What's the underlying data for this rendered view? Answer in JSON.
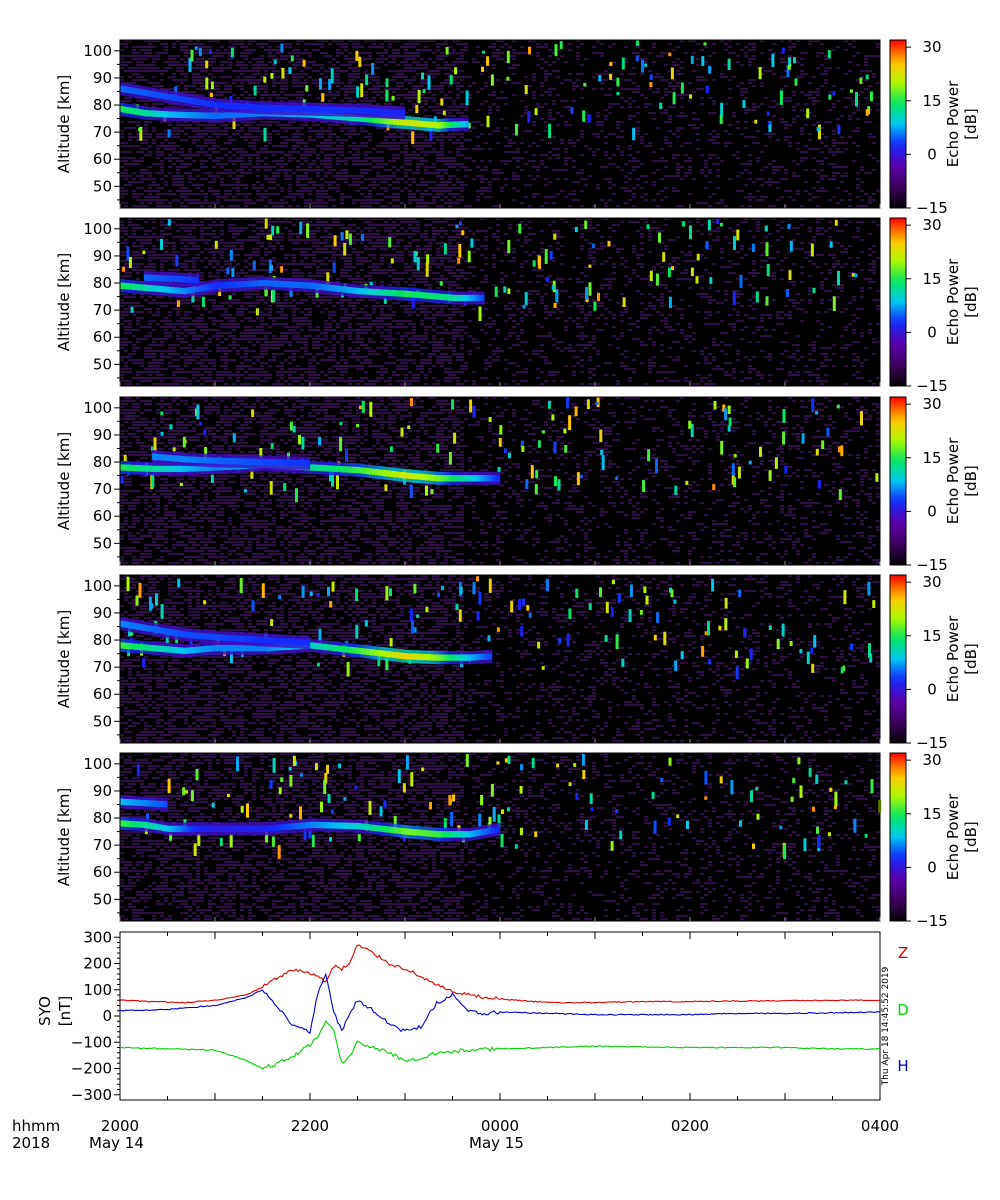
{
  "chart_data": [
    {
      "type": "heatmap",
      "panel": 1,
      "ylabel": "Altitude [km]",
      "ylim": [
        42,
        104
      ],
      "yticks": [
        50,
        60,
        70,
        80,
        90,
        100
      ],
      "xlim": [
        "2018-05-14 20:00",
        "2018-05-15 04:00"
      ],
      "colorbar": {
        "label": "Echo Power [dB]",
        "range": [
          -15,
          32
        ],
        "ticks": [
          -15,
          0,
          15,
          30
        ]
      },
      "echo_layers": [
        {
          "time": [
            "20:00",
            "20:15",
            "20:30",
            "21:00",
            "21:30",
            "22:00",
            "22:30",
            "23:00",
            "23:20",
            "23:40"
          ],
          "altitude_km": [
            78.5,
            77,
            76.5,
            76,
            77,
            76.5,
            75,
            73.5,
            72.5,
            73
          ],
          "peak_dB": [
            15,
            12,
            8,
            5,
            6,
            8,
            12,
            22,
            20,
            6
          ]
        },
        {
          "time": [
            "20:00",
            "20:30",
            "21:00",
            "21:30",
            "22:00",
            "22:30",
            "23:00"
          ],
          "altitude_km": [
            86,
            83,
            80,
            79,
            78.5,
            78,
            77
          ],
          "peak_dB": [
            5,
            4,
            3,
            3,
            3,
            3,
            2
          ]
        }
      ]
    },
    {
      "type": "heatmap",
      "panel": 2,
      "ylabel": "Altitude [km]",
      "ylim": [
        42,
        104
      ],
      "yticks": [
        50,
        60,
        70,
        80,
        90,
        100
      ],
      "xlim": [
        "2018-05-14 20:00",
        "2018-05-15 04:00"
      ],
      "colorbar": {
        "label": "Echo Power [dB]",
        "range": [
          -15,
          32
        ],
        "ticks": [
          -15,
          0,
          15,
          30
        ]
      },
      "echo_layers": [
        {
          "time": [
            "20:00",
            "20:20",
            "20:40",
            "21:00",
            "21:30",
            "22:00",
            "22:30",
            "23:00",
            "23:30",
            "23:50"
          ],
          "altitude_km": [
            79,
            78,
            77,
            79,
            80,
            79,
            77,
            76,
            74.5,
            74.5
          ],
          "peak_dB": [
            15,
            10,
            6,
            3,
            5,
            5,
            8,
            15,
            12,
            3
          ]
        },
        {
          "time": [
            "20:15",
            "20:35",
            "20:50"
          ],
          "altitude_km": [
            82,
            81.5,
            81
          ],
          "peak_dB": [
            5,
            4,
            3
          ]
        }
      ]
    },
    {
      "type": "heatmap",
      "panel": 3,
      "ylabel": "Altitude [km]",
      "ylim": [
        42,
        104
      ],
      "yticks": [
        50,
        60,
        70,
        80,
        90,
        100
      ],
      "xlim": [
        "2018-05-14 20:00",
        "2018-05-15 04:00"
      ],
      "colorbar": {
        "label": "Echo Power [dB]",
        "range": [
          -15,
          32
        ],
        "ticks": [
          -15,
          0,
          15,
          30
        ]
      },
      "echo_layers": [
        {
          "time": [
            "20:00",
            "20:20",
            "20:40",
            "21:00",
            "21:30",
            "22:00",
            "22:30",
            "23:00",
            "23:20",
            "23:40",
            "24:00"
          ],
          "altitude_km": [
            78,
            77.5,
            77.5,
            78,
            79,
            78,
            77,
            75,
            74,
            74,
            74
          ],
          "peak_dB": [
            15,
            12,
            8,
            6,
            8,
            12,
            16,
            22,
            18,
            10,
            2
          ]
        },
        {
          "time": [
            "20:20",
            "20:40",
            "21:00",
            "21:30",
            "22:00"
          ],
          "altitude_km": [
            82,
            81,
            80.5,
            80,
            79.5
          ],
          "peak_dB": [
            6,
            6,
            5,
            4,
            3
          ]
        }
      ]
    },
    {
      "type": "heatmap",
      "panel": 4,
      "ylabel": "Altitude [km]",
      "ylim": [
        42,
        104
      ],
      "yticks": [
        50,
        60,
        70,
        80,
        90,
        100
      ],
      "xlim": [
        "2018-05-14 20:00",
        "2018-05-15 04:00"
      ],
      "colorbar": {
        "label": "Echo Power [dB]",
        "range": [
          -15,
          32
        ],
        "ticks": [
          -15,
          0,
          15,
          30
        ]
      },
      "echo_layers": [
        {
          "time": [
            "20:00",
            "20:20",
            "20:40",
            "21:00",
            "21:30",
            "22:00",
            "22:30",
            "23:00",
            "23:20",
            "23:40",
            "23:55"
          ],
          "altitude_km": [
            78,
            77,
            76,
            77,
            77,
            78,
            76,
            74,
            73.5,
            73.5,
            74
          ],
          "peak_dB": [
            16,
            12,
            8,
            6,
            6,
            10,
            16,
            24,
            18,
            8,
            3
          ]
        },
        {
          "time": [
            "20:00",
            "20:20",
            "20:40",
            "21:00",
            "21:30",
            "22:00"
          ],
          "altitude_km": [
            86,
            84,
            82,
            81,
            80,
            79
          ],
          "peak_dB": [
            6,
            5,
            4,
            4,
            3,
            3
          ]
        }
      ]
    },
    {
      "type": "heatmap",
      "panel": 5,
      "ylabel": "Altitude [km]",
      "ylim": [
        42,
        104
      ],
      "yticks": [
        50,
        60,
        70,
        80,
        90,
        100
      ],
      "xlim": [
        "2018-05-14 20:00",
        "2018-05-15 04:00"
      ],
      "colorbar": {
        "label": "Echo Power [dB]",
        "range": [
          -15,
          32
        ],
        "ticks": [
          -15,
          0,
          15,
          30
        ]
      },
      "echo_layers": [
        {
          "time": [
            "20:00",
            "20:15",
            "20:30",
            "20:45",
            "21:00",
            "21:30",
            "22:00",
            "22:30",
            "23:00",
            "23:20",
            "23:40",
            "24:00"
          ],
          "altitude_km": [
            78,
            77.5,
            76,
            76,
            76,
            76,
            77.5,
            77,
            75,
            74,
            74,
            76
          ],
          "peak_dB": [
            16,
            12,
            8,
            3,
            1,
            2,
            6,
            10,
            18,
            16,
            8,
            2
          ]
        },
        {
          "time": [
            "20:00",
            "20:15",
            "20:30"
          ],
          "altitude_km": [
            86,
            85.5,
            85
          ],
          "peak_dB": [
            8,
            6,
            4
          ]
        }
      ]
    },
    {
      "type": "line",
      "panel": 6,
      "ylabel": "SYO [nT]",
      "ylim": [
        -320,
        320
      ],
      "yticks": [
        -300,
        -200,
        -100,
        0,
        100,
        200,
        300
      ],
      "xlim": [
        "2018-05-14 20:00",
        "2018-05-15 04:00"
      ],
      "series": [
        {
          "name": "Z",
          "color": "#e00000",
          "time": [
            "20:00",
            "20:20",
            "20:40",
            "21:00",
            "21:20",
            "21:30",
            "21:40",
            "21:50",
            "22:00",
            "22:05",
            "22:10",
            "22:15",
            "22:20",
            "22:25",
            "22:30",
            "22:40",
            "22:50",
            "23:00",
            "23:10",
            "23:20",
            "23:30",
            "23:40",
            "23:50",
            "24:00",
            "24:20",
            "24:40",
            "25:00",
            "25:30",
            "26:00",
            "26:30",
            "27:00",
            "27:30",
            "28:00"
          ],
          "values": [
            60,
            55,
            50,
            60,
            80,
            110,
            150,
            175,
            165,
            150,
            130,
            190,
            180,
            200,
            270,
            240,
            200,
            180,
            150,
            120,
            90,
            80,
            70,
            65,
            55,
            50,
            52,
            55,
            55,
            57,
            58,
            60,
            60
          ]
        },
        {
          "name": "D",
          "color": "#00d000",
          "time": [
            "20:00",
            "20:30",
            "21:00",
            "21:20",
            "21:30",
            "21:40",
            "21:50",
            "22:00",
            "22:05",
            "22:10",
            "22:15",
            "22:20",
            "22:25",
            "22:30",
            "22:40",
            "22:50",
            "23:00",
            "23:10",
            "23:20",
            "23:30",
            "23:40",
            "24:00",
            "24:30",
            "25:00",
            "25:30",
            "26:00",
            "26:30",
            "27:00",
            "27:30",
            "28:00"
          ],
          "values": [
            -120,
            -125,
            -130,
            -170,
            -200,
            -180,
            -150,
            -110,
            -80,
            -20,
            -50,
            -180,
            -150,
            -100,
            -120,
            -140,
            -170,
            -160,
            -140,
            -135,
            -130,
            -125,
            -120,
            -115,
            -118,
            -120,
            -120,
            -120,
            -125,
            -125
          ]
        },
        {
          "name": "H",
          "color": "#0000cc",
          "time": [
            "20:00",
            "20:30",
            "21:00",
            "21:20",
            "21:30",
            "21:40",
            "21:50",
            "22:00",
            "22:05",
            "22:10",
            "22:15",
            "22:20",
            "22:25",
            "22:30",
            "22:40",
            "22:50",
            "23:00",
            "23:10",
            "23:20",
            "23:30",
            "23:40",
            "23:50",
            "24:00",
            "24:30",
            "25:00",
            "25:30",
            "26:00",
            "26:30",
            "27:00",
            "27:30",
            "28:00"
          ],
          "values": [
            20,
            25,
            40,
            70,
            100,
            30,
            -40,
            -60,
            90,
            160,
            20,
            -60,
            10,
            60,
            20,
            -30,
            -60,
            -40,
            50,
            80,
            20,
            10,
            15,
            10,
            5,
            5,
            5,
            10,
            10,
            12,
            15
          ]
        }
      ]
    }
  ],
  "xaxis": {
    "tick_labels": [
      "2000",
      "2200",
      "0000",
      "0200",
      "0400"
    ],
    "row_label_top": "hhmm",
    "row_label_bottom": "2018",
    "date_labels": [
      {
        "time": "20:00",
        "text": "May 14"
      },
      {
        "time": "24:00",
        "text": "May 15"
      }
    ]
  },
  "side_labels": {
    "colorbar_label_line1": "Echo Power",
    "colorbar_label_line2": "[dB]"
  },
  "timestamp": "Thu Apr 18 14:45:52 2019",
  "colors": {
    "background_plot": "#000000",
    "frame": "#000000"
  }
}
